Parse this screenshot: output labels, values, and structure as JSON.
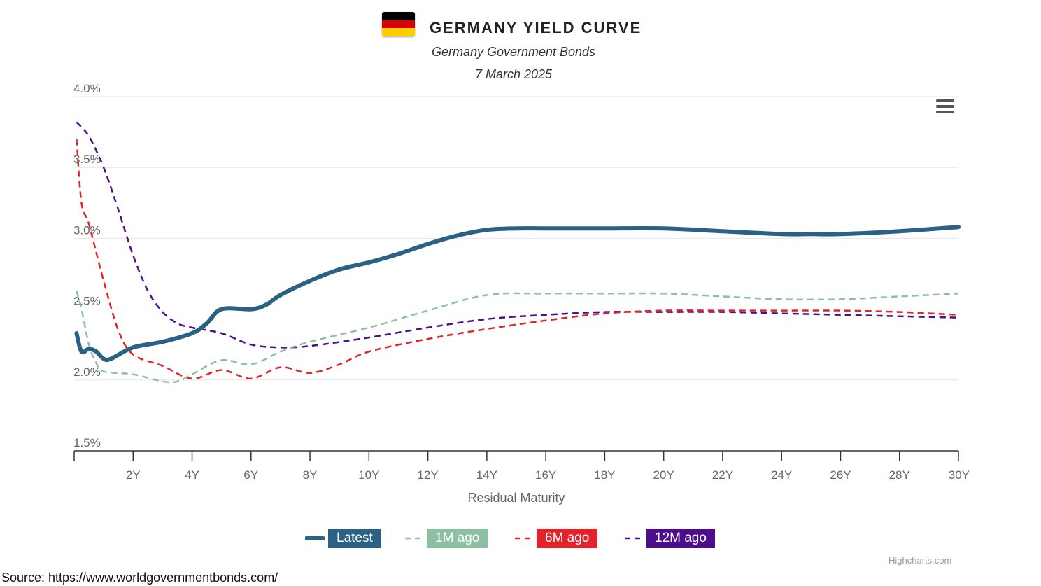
{
  "header": {
    "title": "GERMANY YIELD CURVE",
    "subtitle": "Germany Government Bonds",
    "date": "7 March 2025",
    "flag_colors": [
      "#000000",
      "#dd0000",
      "#ffce00"
    ]
  },
  "menu": {
    "icon": "hamburger-menu-icon"
  },
  "chart_data": {
    "type": "line",
    "xlabel": "Residual Maturity",
    "ylabel": "",
    "xlim": [
      0,
      30
    ],
    "ylim": [
      1.5,
      4.0
    ],
    "x_ticks": [
      2,
      4,
      6,
      8,
      10,
      12,
      14,
      16,
      18,
      20,
      22,
      24,
      26,
      28,
      30
    ],
    "x_tick_labels": [
      "2Y",
      "4Y",
      "6Y",
      "8Y",
      "10Y",
      "12Y",
      "14Y",
      "16Y",
      "18Y",
      "20Y",
      "22Y",
      "24Y",
      "26Y",
      "28Y",
      "30Y"
    ],
    "y_ticks": [
      1.5,
      2.0,
      2.5,
      3.0,
      3.5,
      4.0
    ],
    "y_tick_labels": [
      "1.5%",
      "2.0%",
      "2.5%",
      "3.0%",
      "3.5%",
      "4.0%"
    ],
    "grid": true,
    "legend_position": "bottom-center",
    "series": [
      {
        "name": "Latest",
        "color": "#2b6184",
        "dash": "solid",
        "x": [
          0.08,
          0.25,
          0.5,
          0.75,
          1,
          1.25,
          2,
          3,
          4,
          4.5,
          5,
          6,
          6.5,
          7,
          8,
          9,
          10,
          11,
          12,
          13,
          14,
          15,
          16,
          18,
          20,
          22,
          24,
          25,
          26,
          28,
          30
        ],
        "values": [
          2.33,
          2.2,
          2.22,
          2.2,
          2.15,
          2.15,
          2.23,
          2.27,
          2.33,
          2.4,
          2.5,
          2.5,
          2.53,
          2.6,
          2.7,
          2.78,
          2.83,
          2.89,
          2.96,
          3.02,
          3.06,
          3.07,
          3.07,
          3.07,
          3.07,
          3.05,
          3.03,
          3.03,
          3.03,
          3.05,
          3.08
        ]
      },
      {
        "name": "1M ago",
        "color": "#8dbfa2",
        "dash": "dash",
        "x": [
          0.08,
          0.25,
          0.5,
          0.75,
          1,
          2,
          3,
          3.5,
          4,
          5,
          6,
          7,
          8,
          10,
          12,
          14,
          16,
          18,
          20,
          22,
          24,
          26,
          28,
          30
        ],
        "values": [
          2.63,
          2.5,
          2.25,
          2.12,
          2.06,
          2.04,
          1.99,
          1.99,
          2.04,
          2.14,
          2.11,
          2.2,
          2.27,
          2.37,
          2.49,
          2.6,
          2.61,
          2.61,
          2.61,
          2.59,
          2.57,
          2.57,
          2.59,
          2.61
        ]
      },
      {
        "name": "6M ago",
        "color": "#e2232a",
        "dash": "dash",
        "x": [
          0.08,
          0.25,
          0.5,
          1,
          1.5,
          2,
          3,
          4,
          5,
          6,
          7,
          8,
          9,
          10,
          12,
          14,
          16,
          18,
          20,
          22,
          24,
          26,
          28,
          30
        ],
        "values": [
          3.7,
          3.25,
          3.1,
          2.7,
          2.35,
          2.18,
          2.1,
          2.01,
          2.07,
          2.01,
          2.09,
          2.05,
          2.11,
          2.2,
          2.29,
          2.36,
          2.42,
          2.47,
          2.49,
          2.49,
          2.49,
          2.49,
          2.48,
          2.46
        ]
      },
      {
        "name": "12M ago",
        "color": "#4d0e8c",
        "dash": "dash",
        "x": [
          0.08,
          0.5,
          1,
          1.5,
          2,
          2.5,
          3,
          3.5,
          4,
          5,
          6,
          7,
          8,
          10,
          12,
          14,
          16,
          18,
          20,
          22,
          24,
          26,
          28,
          30
        ],
        "values": [
          3.82,
          3.72,
          3.5,
          3.2,
          2.88,
          2.63,
          2.48,
          2.4,
          2.37,
          2.33,
          2.25,
          2.23,
          2.24,
          2.3,
          2.37,
          2.43,
          2.46,
          2.48,
          2.48,
          2.48,
          2.47,
          2.46,
          2.45,
          2.44
        ]
      }
    ]
  },
  "credits": "Highcharts.com",
  "source": "Source:  https://www.worldgovernmentbonds.com/"
}
